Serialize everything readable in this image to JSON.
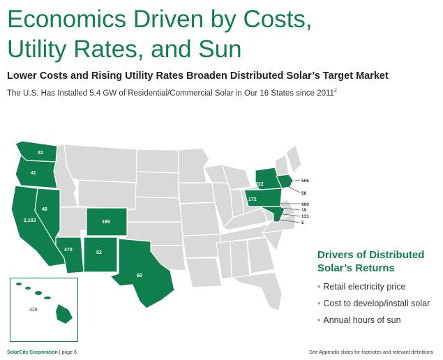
{
  "title": {
    "line1": "Economics Driven by Costs,",
    "line2": "Utility Rates, and Sun"
  },
  "subtitle": "Lower Costs and Rising Utility Rates Broaden Distributed Solar’s Target Market",
  "note": {
    "text": "The U.S. Has Installed 5.4 GW of Residential/Commercial Solar in Our 16 States since 2011",
    "sup": "2"
  },
  "map": {
    "highlight_color": "#0f7f4f",
    "base_color": "#d9d9d9",
    "state_values": {
      "washington": "22",
      "oregon": "41",
      "california": "2,163",
      "nevada": "46",
      "arizona": "470",
      "new_mexico": "52",
      "colorado": "189",
      "texas": "60",
      "hawaii": "329",
      "new_york": "222",
      "pennsylvania": "172"
    },
    "northeast_callouts": [
      "565",
      "58",
      "900",
      "19",
      "131",
      "5"
    ]
  },
  "drivers": {
    "title_line1": "Drivers of Distributed",
    "title_line2": "Solar’s Returns",
    "items": [
      "Retail electricity price",
      "Cost to develop/install solar",
      "Annual hours of sun"
    ]
  },
  "footer": {
    "company": "SolarCity Corporation",
    "page": "| page 6",
    "disclaimer": "See Appendix slides for footnotes and relevant definitions"
  }
}
